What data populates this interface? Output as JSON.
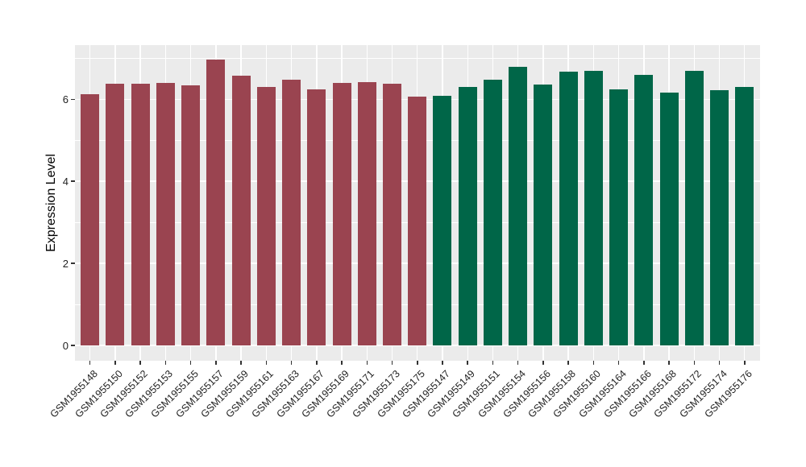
{
  "chart_data": {
    "type": "bar",
    "title": "",
    "xlabel": "",
    "ylabel": "Expression Level",
    "yticks": [
      0,
      2,
      4,
      6
    ],
    "minor_yticks": [
      1,
      3,
      5,
      7
    ],
    "ylim": [
      0,
      7.32
    ],
    "grid": "white major and minor horizontal gridlines plus vertical gridlines at each bar center, on light gray panel",
    "legend": "none",
    "panel_bg": "#EBEBEB",
    "grid_color": "#FFFFFF",
    "bars": [
      {
        "label": "GSM1955148",
        "value": 6.13,
        "color": "#9A4450"
      },
      {
        "label": "GSM1955150",
        "value": 6.38,
        "color": "#9A4450"
      },
      {
        "label": "GSM1955152",
        "value": 6.38,
        "color": "#9A4450"
      },
      {
        "label": "GSM1955153",
        "value": 6.4,
        "color": "#9A4450"
      },
      {
        "label": "GSM1955155",
        "value": 6.34,
        "color": "#9A4450"
      },
      {
        "label": "GSM1955157",
        "value": 6.97,
        "color": "#9A4450"
      },
      {
        "label": "GSM1955159",
        "value": 6.58,
        "color": "#9A4450"
      },
      {
        "label": "GSM1955161",
        "value": 6.3,
        "color": "#9A4450"
      },
      {
        "label": "GSM1955163",
        "value": 6.48,
        "color": "#9A4450"
      },
      {
        "label": "GSM1955167",
        "value": 6.25,
        "color": "#9A4450"
      },
      {
        "label": "GSM1955169",
        "value": 6.4,
        "color": "#9A4450"
      },
      {
        "label": "GSM1955171",
        "value": 6.42,
        "color": "#9A4450"
      },
      {
        "label": "GSM1955173",
        "value": 6.37,
        "color": "#9A4450"
      },
      {
        "label": "GSM1955175",
        "value": 6.06,
        "color": "#9A4450"
      },
      {
        "label": "GSM1955147",
        "value": 6.08,
        "color": "#006648"
      },
      {
        "label": "GSM1955149",
        "value": 6.31,
        "color": "#006648"
      },
      {
        "label": "GSM1955151",
        "value": 6.47,
        "color": "#006648"
      },
      {
        "label": "GSM1955154",
        "value": 6.8,
        "color": "#006648"
      },
      {
        "label": "GSM1955156",
        "value": 6.36,
        "color": "#006648"
      },
      {
        "label": "GSM1955158",
        "value": 6.67,
        "color": "#006648"
      },
      {
        "label": "GSM1955160",
        "value": 6.69,
        "color": "#006648"
      },
      {
        "label": "GSM1955164",
        "value": 6.25,
        "color": "#006648"
      },
      {
        "label": "GSM1955166",
        "value": 6.6,
        "color": "#006648"
      },
      {
        "label": "GSM1955168",
        "value": 6.16,
        "color": "#006648"
      },
      {
        "label": "GSM1955172",
        "value": 6.69,
        "color": "#006648"
      },
      {
        "label": "GSM1955174",
        "value": 6.23,
        "color": "#006648"
      },
      {
        "label": "GSM1955176",
        "value": 6.31,
        "color": "#006648"
      }
    ]
  }
}
